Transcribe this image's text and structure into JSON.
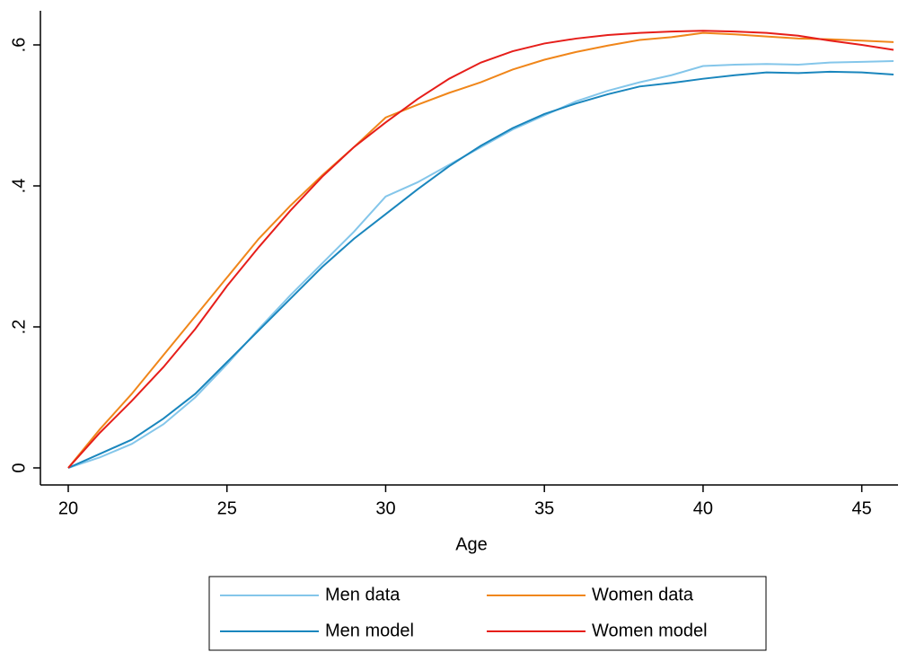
{
  "chart_data": {
    "type": "line",
    "x_label": "Age",
    "x": [
      20,
      21,
      22,
      23,
      24,
      25,
      26,
      27,
      28,
      29,
      30,
      31,
      32,
      33,
      34,
      35,
      36,
      37,
      38,
      39,
      40,
      41,
      42,
      43,
      44,
      45,
      46
    ],
    "series": [
      {
        "name": "Men data",
        "color": "#84c6ea",
        "values": [
          0,
          0.015,
          0.034,
          0.062,
          0.1,
          0.147,
          0.197,
          0.245,
          0.29,
          0.335,
          0.385,
          0.405,
          0.43,
          0.455,
          0.48,
          0.5,
          0.52,
          0.535,
          0.547,
          0.557,
          0.57,
          0.572,
          0.573,
          0.572,
          0.575,
          0.576,
          0.577
        ]
      },
      {
        "name": "Women data",
        "color": "#f0861a",
        "values": [
          0,
          0.055,
          0.105,
          0.16,
          0.215,
          0.27,
          0.325,
          0.372,
          0.415,
          0.455,
          0.497,
          0.515,
          0.532,
          0.547,
          0.565,
          0.579,
          0.59,
          0.599,
          0.607,
          0.611,
          0.617,
          0.615,
          0.612,
          0.609,
          0.608,
          0.606,
          0.604
        ]
      },
      {
        "name": "Men model",
        "color": "#1a86bd",
        "values": [
          0,
          0.02,
          0.04,
          0.07,
          0.105,
          0.15,
          0.195,
          0.24,
          0.285,
          0.325,
          0.36,
          0.395,
          0.428,
          0.457,
          0.482,
          0.502,
          0.517,
          0.53,
          0.541,
          0.546,
          0.552,
          0.557,
          0.561,
          0.56,
          0.562,
          0.561,
          0.558
        ]
      },
      {
        "name": "Women model",
        "color": "#e61e1a",
        "values": [
          0,
          0.05,
          0.095,
          0.143,
          0.197,
          0.258,
          0.313,
          0.365,
          0.413,
          0.455,
          0.49,
          0.523,
          0.552,
          0.575,
          0.591,
          0.602,
          0.609,
          0.614,
          0.617,
          0.619,
          0.62,
          0.619,
          0.617,
          0.613,
          0.606,
          0.6,
          0.593
        ]
      }
    ],
    "xlim": [
      20,
      46
    ],
    "xticks": [
      20,
      25,
      30,
      35,
      40,
      45
    ],
    "ylim": [
      0,
      0.6
    ],
    "yticks": [
      0,
      {
        "value": 0.2,
        "label": ".2"
      },
      {
        "value": 0.4,
        "label": ".4"
      },
      {
        "value": 0.6,
        "label": ".6"
      }
    ],
    "grid": false
  }
}
